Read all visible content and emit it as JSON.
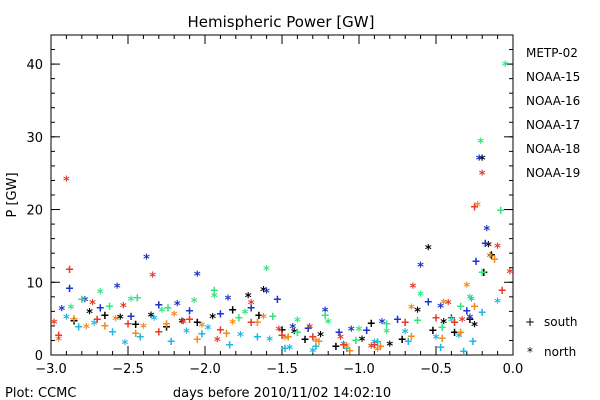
{
  "chart_data": {
    "type": "scatter",
    "title": "Hemispheric Power [GW]",
    "xlabel": "days before 2010/11/02 14:02:10",
    "ylabel": "P [GW]",
    "xlim": [
      -3.0,
      0.0
    ],
    "ylim": [
      0,
      44
    ],
    "x_ticks": [
      -3.0,
      -2.5,
      -2.0,
      -1.5,
      -1.0,
      -0.5,
      0.0
    ],
    "x_tick_labels": [
      "−3.0",
      "−2.5",
      "−2.0",
      "−1.5",
      "−1.0",
      "−0.5",
      "0.0"
    ],
    "y_ticks": [
      0,
      10,
      20,
      30,
      40
    ],
    "y_tick_labels": [
      "0",
      "10",
      "20",
      "30",
      "40"
    ],
    "grid": false,
    "legend_placement": "right",
    "credit": "Plot: CCMC",
    "marker_legend": [
      {
        "symbol": "+",
        "label": "south"
      },
      {
        "symbol": "*",
        "label": "north"
      }
    ],
    "series": [
      {
        "name": "METP-02",
        "color": "#000000",
        "north": [
          [
            -2.75,
            5.8
          ],
          [
            -2.55,
            5.0
          ],
          [
            -2.35,
            5.3
          ],
          [
            -2.15,
            4.5
          ],
          [
            -1.95,
            5.1
          ],
          [
            -1.72,
            8.0
          ],
          [
            -1.62,
            8.8
          ],
          [
            -1.42,
            3.0
          ],
          [
            -1.25,
            2.6
          ],
          [
            -0.98,
            2.0
          ],
          [
            -0.8,
            1.3
          ],
          [
            -0.62,
            6.0
          ],
          [
            -0.55,
            14.6
          ],
          [
            -0.45,
            4.4
          ],
          [
            -0.25,
            4.0
          ],
          [
            -0.2,
            26.9
          ],
          [
            -0.16,
            15.0
          ]
        ],
        "south": [
          [
            -2.85,
            4.8
          ],
          [
            -2.65,
            5.6
          ],
          [
            -2.45,
            4.3
          ],
          [
            -2.25,
            4.0
          ],
          [
            -2.05,
            4.6
          ],
          [
            -1.82,
            6.3
          ],
          [
            -1.65,
            5.6
          ],
          [
            -1.5,
            3.6
          ],
          [
            -1.35,
            2.3
          ],
          [
            -1.15,
            1.3
          ],
          [
            -0.92,
            4.5
          ],
          [
            -0.72,
            2.3
          ],
          [
            -0.52,
            3.5
          ],
          [
            -0.38,
            3.2
          ],
          [
            -0.28,
            5.0
          ],
          [
            -0.19,
            11.5
          ],
          [
            -0.14,
            13.9
          ]
        ]
      },
      {
        "name": "NOAA-15",
        "color": "#1a33cc",
        "north": [
          [
            -2.93,
            6.2
          ],
          [
            -2.78,
            7.4
          ],
          [
            -2.57,
            9.3
          ],
          [
            -2.38,
            13.3
          ],
          [
            -2.18,
            6.9
          ],
          [
            -2.05,
            10.9
          ],
          [
            -1.85,
            7.6
          ],
          [
            -1.6,
            8.6
          ],
          [
            -1.43,
            3.7
          ],
          [
            -1.22,
            6.0
          ],
          [
            -1.05,
            3.4
          ],
          [
            -0.85,
            4.4
          ],
          [
            -0.6,
            12.2
          ],
          [
            -0.47,
            6.5
          ],
          [
            -0.28,
            5.0
          ],
          [
            -0.22,
            26.9
          ],
          [
            -0.17,
            17.2
          ]
        ],
        "south": [
          [
            -2.88,
            9.3
          ],
          [
            -2.68,
            6.6
          ],
          [
            -2.48,
            5.4
          ],
          [
            -2.3,
            7.0
          ],
          [
            -2.1,
            6.2
          ],
          [
            -1.9,
            5.8
          ],
          [
            -1.7,
            6.6
          ],
          [
            -1.53,
            7.8
          ],
          [
            -1.33,
            3.8
          ],
          [
            -1.13,
            3.2
          ],
          [
            -0.95,
            3.5
          ],
          [
            -0.75,
            5.0
          ],
          [
            -0.55,
            7.4
          ],
          [
            -0.4,
            5.2
          ],
          [
            -0.3,
            6.2
          ],
          [
            -0.24,
            13.0
          ],
          [
            -0.18,
            15.5
          ]
        ]
      },
      {
        "name": "NOAA-16",
        "color": "#1fb7e5",
        "north": [
          [
            -2.9,
            5.0
          ],
          [
            -2.72,
            4.2
          ],
          [
            -2.52,
            1.5
          ],
          [
            -2.33,
            4.9
          ],
          [
            -2.12,
            3.1
          ],
          [
            -1.98,
            3.6
          ],
          [
            -1.77,
            2.6
          ],
          [
            -1.58,
            2.0
          ],
          [
            -1.45,
            0.8
          ],
          [
            -1.3,
            0.4
          ],
          [
            -1.1,
            1.3
          ],
          [
            -0.9,
            1.6
          ],
          [
            -0.7,
            3.0
          ],
          [
            -0.5,
            2.3
          ],
          [
            -0.35,
            2.5
          ],
          [
            -0.27,
            7.5
          ],
          [
            -0.1,
            7.2
          ]
        ],
        "south": [
          [
            -2.82,
            4.0
          ],
          [
            -2.6,
            3.3
          ],
          [
            -2.42,
            2.6
          ],
          [
            -2.22,
            2.0
          ],
          [
            -2.02,
            3.0
          ],
          [
            -1.84,
            1.5
          ],
          [
            -1.66,
            2.6
          ],
          [
            -1.48,
            1.0
          ],
          [
            -1.28,
            1.3
          ],
          [
            -1.08,
            1.0
          ],
          [
            -0.88,
            1.9
          ],
          [
            -0.68,
            2.0
          ],
          [
            -0.47,
            1.2
          ],
          [
            -0.32,
            0.6
          ],
          [
            -0.26,
            2.0
          ],
          [
            -0.2,
            6.0
          ]
        ]
      },
      {
        "name": "NOAA-17",
        "color": "#33e580",
        "north": [
          [
            -2.87,
            6.4
          ],
          [
            -2.68,
            8.5
          ],
          [
            -2.48,
            7.5
          ],
          [
            -2.28,
            6.0
          ],
          [
            -2.07,
            7.3
          ],
          [
            -1.94,
            8.0
          ],
          [
            -1.74,
            5.7
          ],
          [
            -1.6,
            11.7
          ],
          [
            -1.4,
            4.6
          ],
          [
            -1.2,
            4.4
          ],
          [
            -1.0,
            3.4
          ],
          [
            -0.82,
            3.1
          ],
          [
            -0.6,
            8.2
          ],
          [
            -0.4,
            4.7
          ],
          [
            -0.28,
            7.8
          ],
          [
            -0.21,
            29.2
          ],
          [
            -0.05,
            39.8
          ]
        ],
        "south": [
          [
            -2.8,
            7.8
          ],
          [
            -2.62,
            6.8
          ],
          [
            -2.44,
            8.0
          ],
          [
            -2.24,
            6.6
          ],
          [
            -1.94,
            9.0
          ],
          [
            -1.78,
            5.2
          ],
          [
            -1.56,
            5.4
          ],
          [
            -1.4,
            3.2
          ],
          [
            -1.22,
            5.6
          ],
          [
            -1.02,
            2.1
          ],
          [
            -0.82,
            4.4
          ],
          [
            -0.62,
            4.9
          ],
          [
            -0.46,
            3.9
          ],
          [
            -0.34,
            6.8
          ],
          [
            -0.2,
            11.5
          ],
          [
            -0.08,
            20.0
          ]
        ]
      },
      {
        "name": "NOAA-18",
        "color": "#f08c1f",
        "north": [
          [
            -2.95,
            2.0
          ],
          [
            -2.77,
            3.7
          ],
          [
            -2.58,
            4.8
          ],
          [
            -2.4,
            3.8
          ],
          [
            -2.2,
            5.4
          ],
          [
            -2.02,
            3.9
          ],
          [
            -1.82,
            4.3
          ],
          [
            -1.62,
            5.1
          ],
          [
            -1.48,
            2.2
          ],
          [
            -1.28,
            1.8
          ],
          [
            -1.08,
            1.1
          ],
          [
            -0.88,
            0.6
          ],
          [
            -0.66,
            6.4
          ],
          [
            -0.45,
            7.1
          ],
          [
            -0.3,
            9.4
          ],
          [
            -0.23,
            20.5
          ],
          [
            -0.15,
            13.5
          ]
        ],
        "south": [
          [
            -2.85,
            5.1
          ],
          [
            -2.65,
            4.1
          ],
          [
            -2.45,
            3.1
          ],
          [
            -2.25,
            4.4
          ],
          [
            -2.05,
            2.3
          ],
          [
            -1.86,
            3.1
          ],
          [
            -1.66,
            4.6
          ],
          [
            -1.46,
            2.6
          ],
          [
            -1.26,
            2.0
          ],
          [
            -1.06,
            0.7
          ],
          [
            -0.86,
            1.3
          ],
          [
            -0.66,
            2.7
          ],
          [
            -0.46,
            2.4
          ],
          [
            -0.34,
            3.2
          ],
          [
            -0.25,
            6.8
          ],
          [
            -0.12,
            13.3
          ]
        ]
      },
      {
        "name": "NOAA-19",
        "color": "#e83a26",
        "north": [
          [
            -2.98,
            4.3
          ],
          [
            -2.9,
            24.0
          ],
          [
            -2.73,
            7.0
          ],
          [
            -2.53,
            6.6
          ],
          [
            -2.34,
            10.8
          ],
          [
            -2.14,
            4.4
          ],
          [
            -1.92,
            1.9
          ],
          [
            -1.7,
            7.0
          ],
          [
            -1.52,
            3.4
          ],
          [
            -1.32,
            3.7
          ],
          [
            -1.12,
            2.3
          ],
          [
            -0.92,
            1.0
          ],
          [
            -0.65,
            9.3
          ],
          [
            -0.42,
            7.0
          ],
          [
            -0.33,
            4.7
          ],
          [
            -0.2,
            24.8
          ],
          [
            -0.1,
            14.8
          ],
          [
            -0.02,
            11.3
          ]
        ],
        "south": [
          [
            -2.95,
            2.8
          ],
          [
            -2.88,
            11.9
          ],
          [
            -2.7,
            5.0
          ],
          [
            -2.5,
            4.4
          ],
          [
            -2.3,
            3.3
          ],
          [
            -2.1,
            5.0
          ],
          [
            -1.9,
            3.6
          ],
          [
            -1.7,
            4.6
          ],
          [
            -1.5,
            2.8
          ],
          [
            -1.3,
            2.6
          ],
          [
            -1.1,
            1.5
          ],
          [
            -0.9,
            1.5
          ],
          [
            -0.7,
            4.6
          ],
          [
            -0.5,
            5.2
          ],
          [
            -0.38,
            4.6
          ],
          [
            -0.25,
            20.5
          ],
          [
            -0.07,
            9.0
          ]
        ]
      }
    ]
  }
}
